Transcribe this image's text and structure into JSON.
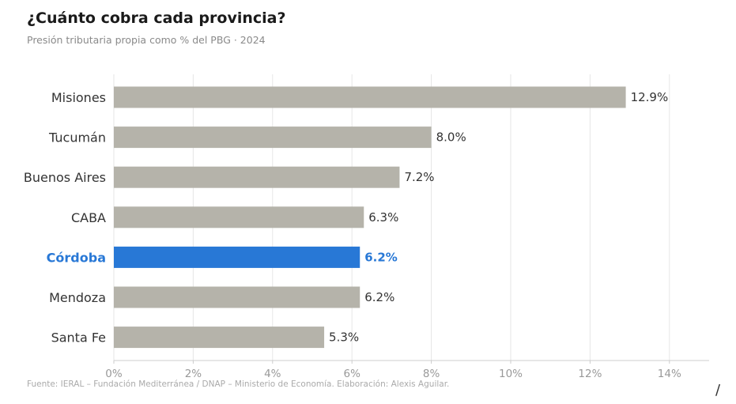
{
  "chart_data": {
    "type": "bar",
    "orientation": "horizontal",
    "title": "¿Cuánto cobra cada provincia?",
    "subtitle": "Presión tributaria propia como % del PBG · 2024",
    "categories": [
      "Misiones",
      "Tucumán",
      "Buenos Aires",
      "CABA",
      "Córdoba",
      "Mendoza",
      "Santa Fe"
    ],
    "values": [
      12.9,
      8.0,
      7.2,
      6.3,
      6.2,
      6.2,
      5.3
    ],
    "value_labels": [
      "12.9%",
      "8.0%",
      "7.2%",
      "6.3%",
      "6.2%",
      "6.2%",
      "5.3%"
    ],
    "highlight": "Córdoba",
    "xlim": [
      0,
      15
    ],
    "xticks": [
      0,
      2,
      4,
      6,
      8,
      10,
      12,
      14
    ],
    "xtick_labels": [
      "0%",
      "2%",
      "4%",
      "6%",
      "8%",
      "10%",
      "12%",
      "14%"
    ],
    "grid": "vertical",
    "colors": {
      "bar": "#b5b3aa",
      "highlight": "#2878d6",
      "grid": "#e6e6e6",
      "axis": "#cccccc"
    },
    "source": "Fuente: IERAL – Fundación Mediterránea / DNAP – Ministerio de Economía. Elaboración: Alexis Aguilar.",
    "corner_mark": "/"
  }
}
